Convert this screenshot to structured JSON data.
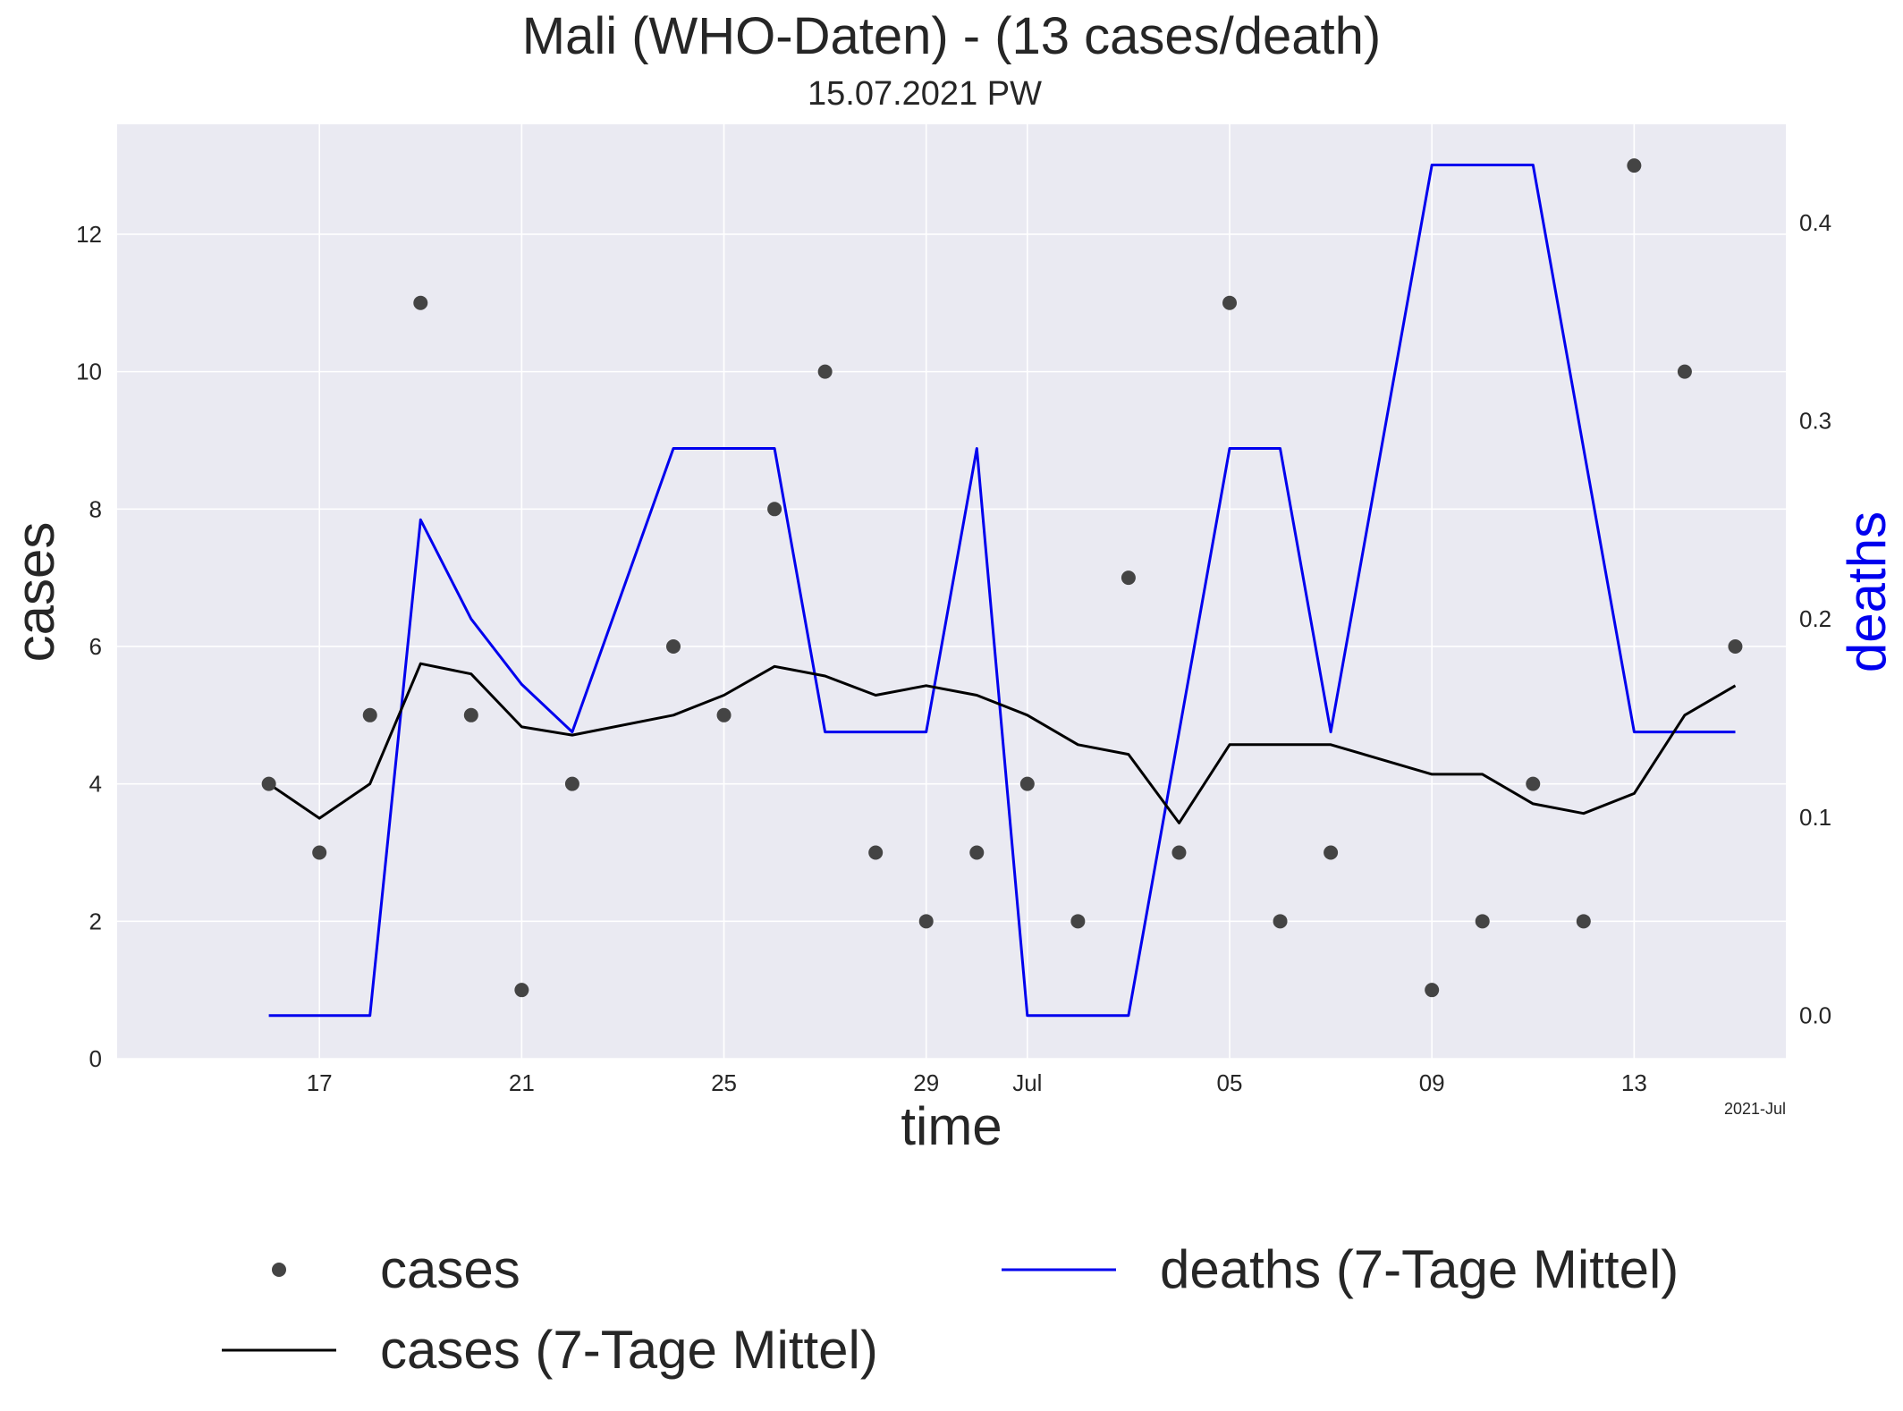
{
  "colors": {
    "plot_bg": "#EAEAF2",
    "grid": "#FFFFFF",
    "text": "#262626",
    "cases_dots": "#444444",
    "cases_avg": "#000000",
    "deaths": "#0000EE",
    "deaths_axis_label": "#0000EE"
  },
  "chart_data": {
    "type": "line",
    "title": "Mali (WHO-Daten) - (13 cases/death)",
    "subtitle": "15.07.2021 PW",
    "xlabel": "time",
    "ylabel_left": "cases",
    "ylabel_right": "deaths",
    "x_offset_label": "2021-Jul",
    "x_dates": [
      "2021-06-16",
      "2021-06-17",
      "2021-06-18",
      "2021-06-19",
      "2021-06-20",
      "2021-06-21",
      "2021-06-22",
      "2021-06-23",
      "2021-06-24",
      "2021-06-25",
      "2021-06-26",
      "2021-06-27",
      "2021-06-28",
      "2021-06-29",
      "2021-06-30",
      "2021-07-01",
      "2021-07-02",
      "2021-07-03",
      "2021-07-04",
      "2021-07-05",
      "2021-07-06",
      "2021-07-07",
      "2021-07-08",
      "2021-07-09",
      "2021-07-10",
      "2021-07-11",
      "2021-07-12",
      "2021-07-13",
      "2021-07-14",
      "2021-07-15"
    ],
    "x_range": [
      "2021-06-13",
      "2021-07-16"
    ],
    "x_ticks": [
      {
        "date": "2021-06-17",
        "label": "17"
      },
      {
        "date": "2021-06-21",
        "label": "21"
      },
      {
        "date": "2021-06-25",
        "label": "25"
      },
      {
        "date": "2021-06-29",
        "label": "29"
      },
      {
        "date": "2021-07-01",
        "label": "Jul"
      },
      {
        "date": "2021-07-05",
        "label": "05"
      },
      {
        "date": "2021-07-09",
        "label": "09"
      },
      {
        "date": "2021-07-13",
        "label": "13"
      }
    ],
    "y_left": {
      "range": [
        0,
        13.6
      ],
      "ticks": [
        0,
        2,
        4,
        6,
        8,
        10,
        12
      ]
    },
    "y_right": {
      "range": [
        -0.0218,
        0.4495
      ],
      "ticks": [
        "0.0",
        "0.1",
        "0.2",
        "0.3",
        "0.4"
      ]
    },
    "grid": true,
    "legend_position": "bottom",
    "series": [
      {
        "name": "cases",
        "kind": "scatter",
        "axis": "left",
        "values": [
          4,
          3,
          5,
          11,
          5,
          1,
          4,
          null,
          6,
          5,
          8,
          10,
          3,
          2,
          3,
          4,
          2,
          7,
          3,
          11,
          2,
          3,
          null,
          1,
          2,
          4,
          2,
          13,
          10,
          6
        ]
      },
      {
        "name": "cases (7-Tage Mittel)",
        "kind": "line",
        "axis": "left",
        "values": [
          4.0,
          3.5,
          4.0,
          5.75,
          5.6,
          4.83,
          4.71,
          null,
          5.0,
          5.29,
          5.71,
          5.57,
          5.29,
          5.43,
          5.29,
          5.0,
          4.57,
          4.43,
          3.43,
          4.57,
          4.57,
          4.57,
          null,
          4.14,
          4.14,
          3.71,
          3.57,
          3.86,
          5.0,
          5.43
        ]
      },
      {
        "name": "deaths (7-Tage Mittel)",
        "kind": "line",
        "axis": "right",
        "values": [
          0.0,
          0.0,
          0.0,
          0.25,
          0.2,
          0.167,
          0.143,
          null,
          0.286,
          0.286,
          0.286,
          0.143,
          0.143,
          0.143,
          0.286,
          0.0,
          0.0,
          0.0,
          0.143,
          0.286,
          0.286,
          0.143,
          null,
          0.429,
          0.429,
          0.429,
          0.286,
          0.143,
          0.143,
          0.143
        ]
      }
    ]
  }
}
